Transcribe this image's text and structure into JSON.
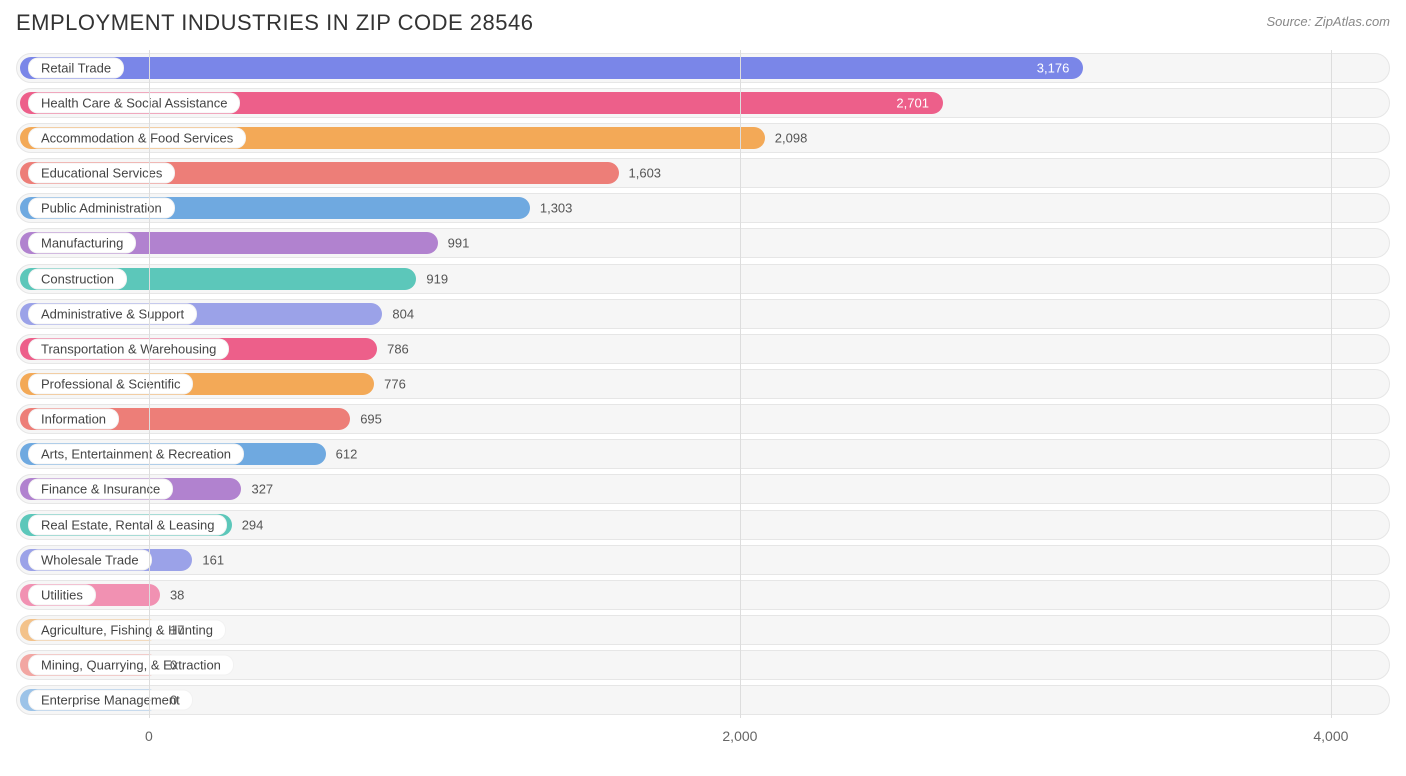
{
  "title": "EMPLOYMENT INDUSTRIES IN ZIP CODE 28546",
  "source": "Source: ZipAtlas.com",
  "chart": {
    "type": "bar-horizontal",
    "x_min": -450,
    "x_max": 4200,
    "x_ticks": [
      0,
      2000,
      4000
    ],
    "x_tick_labels": [
      "0",
      "2,000",
      "4,000"
    ],
    "track_bg": "#f6f6f6",
    "track_border": "#e6e6e6",
    "grid_color": "#dddddd",
    "label_fontsize": 13,
    "value_fontsize": 13,
    "title_fontsize": 22,
    "title_color": "#333333",
    "value_color_outside": "#555555",
    "value_color_inside": "#ffffff",
    "rows": [
      {
        "label": "Retail Trade",
        "value": 3176,
        "display": "3,176",
        "color": "#7a86e8",
        "value_inside": true
      },
      {
        "label": "Health Care & Social Assistance",
        "value": 2701,
        "display": "2,701",
        "color": "#ed5f8a",
        "value_inside": true
      },
      {
        "label": "Accommodation & Food Services",
        "value": 2098,
        "display": "2,098",
        "color": "#f3a957",
        "value_inside": false
      },
      {
        "label": "Educational Services",
        "value": 1603,
        "display": "1,603",
        "color": "#ed7e78",
        "value_inside": false
      },
      {
        "label": "Public Administration",
        "value": 1303,
        "display": "1,303",
        "color": "#6fa9e0",
        "value_inside": false
      },
      {
        "label": "Manufacturing",
        "value": 991,
        "display": "991",
        "color": "#b182cf",
        "value_inside": false
      },
      {
        "label": "Construction",
        "value": 919,
        "display": "919",
        "color": "#5cc7ba",
        "value_inside": false
      },
      {
        "label": "Administrative & Support",
        "value": 804,
        "display": "804",
        "color": "#9ba2e8",
        "value_inside": false
      },
      {
        "label": "Transportation & Warehousing",
        "value": 786,
        "display": "786",
        "color": "#ed5f8a",
        "value_inside": false
      },
      {
        "label": "Professional & Scientific",
        "value": 776,
        "display": "776",
        "color": "#f3a957",
        "value_inside": false
      },
      {
        "label": "Information",
        "value": 695,
        "display": "695",
        "color": "#ed7e78",
        "value_inside": false
      },
      {
        "label": "Arts, Entertainment & Recreation",
        "value": 612,
        "display": "612",
        "color": "#6fa9e0",
        "value_inside": false
      },
      {
        "label": "Finance & Insurance",
        "value": 327,
        "display": "327",
        "color": "#b182cf",
        "value_inside": false
      },
      {
        "label": "Real Estate, Rental & Leasing",
        "value": 294,
        "display": "294",
        "color": "#5cc7ba",
        "value_inside": false
      },
      {
        "label": "Wholesale Trade",
        "value": 161,
        "display": "161",
        "color": "#9ba2e8",
        "value_inside": false
      },
      {
        "label": "Utilities",
        "value": 38,
        "display": "38",
        "color": "#f191b2",
        "value_inside": false
      },
      {
        "label": "Agriculture, Fishing & Hunting",
        "value": 17,
        "display": "17",
        "color": "#f3c28a",
        "value_inside": false
      },
      {
        "label": "Mining, Quarrying, & Extraction",
        "value": 0,
        "display": "0",
        "color": "#f2a6a2",
        "value_inside": false
      },
      {
        "label": "Enterprise Management",
        "value": 0,
        "display": "0",
        "color": "#9cc3e8",
        "value_inside": false
      }
    ]
  }
}
